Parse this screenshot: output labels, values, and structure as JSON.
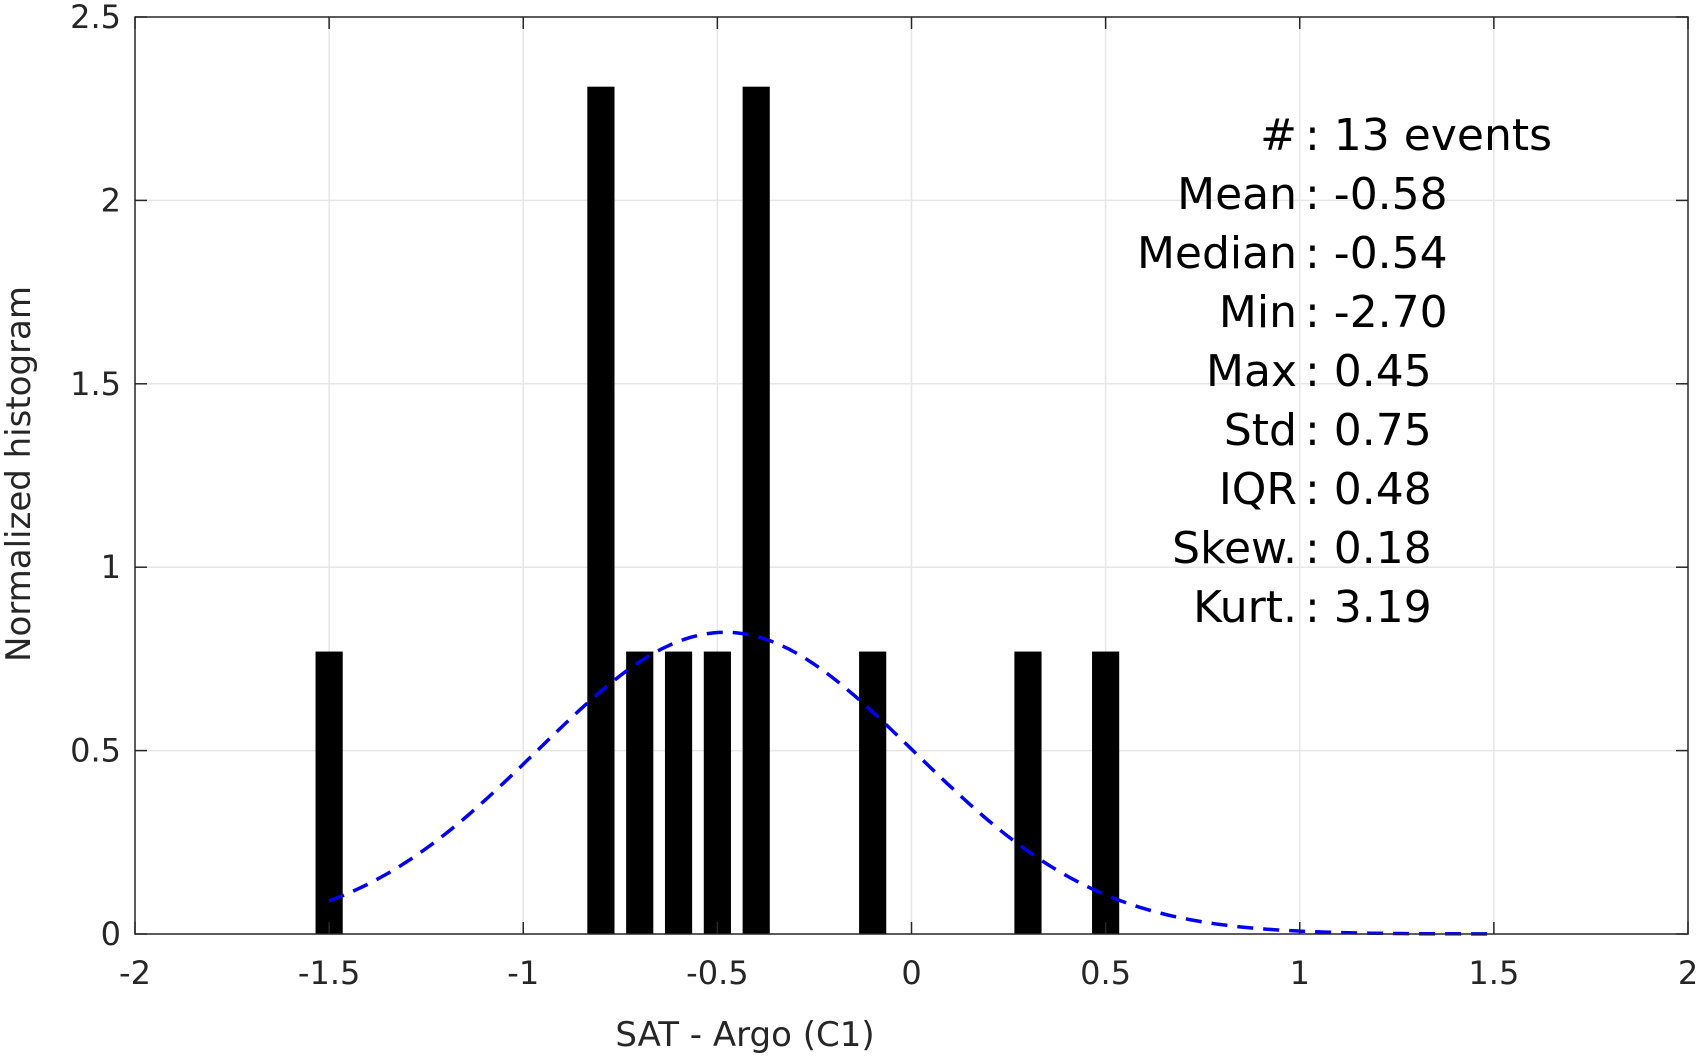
{
  "chart_data": {
    "type": "bar",
    "xlabel": "SAT - Argo (C1)",
    "ylabel": "Normalized histogram",
    "xlim": [
      -2,
      2
    ],
    "ylim": [
      0,
      2.5
    ],
    "xticks": [
      -2,
      -1.5,
      -1,
      -0.5,
      0,
      0.5,
      1,
      1.5,
      2
    ],
    "xtick_labels": [
      "-2",
      "-1.5",
      "-1",
      "-0.5",
      "0",
      "0.5",
      "1",
      "1.5",
      "2"
    ],
    "yticks": [
      0,
      0.5,
      1,
      1.5,
      2,
      2.5
    ],
    "ytick_labels": [
      "0",
      "0.5",
      "1",
      "1.5",
      "2",
      "2.5"
    ],
    "grid": true,
    "bar_color": "#000000",
    "bar_width": 0.07,
    "bars": [
      {
        "x": -1.5,
        "value": 0.77
      },
      {
        "x": -0.8,
        "value": 2.31
      },
      {
        "x": -0.7,
        "value": 0.77
      },
      {
        "x": -0.6,
        "value": 0.77
      },
      {
        "x": -0.5,
        "value": 0.77
      },
      {
        "x": -0.4,
        "value": 2.31
      },
      {
        "x": -0.1,
        "value": 0.77
      },
      {
        "x": 0.3,
        "value": 0.77
      },
      {
        "x": 0.5,
        "value": 0.77
      }
    ],
    "fit_curve": {
      "style": "dashed",
      "color": "#0000ee",
      "mean": -0.48,
      "std": 0.485,
      "x_range": [
        -1.5,
        1.5
      ]
    },
    "annotations": [
      {
        "label": "#",
        "value": ": 13 events"
      },
      {
        "label": "Mean",
        "value": ": -0.58"
      },
      {
        "label": "Median",
        "value": ": -0.54"
      },
      {
        "label": "Min",
        "value": ": -2.70"
      },
      {
        "label": "Max",
        "value": ": 0.45"
      },
      {
        "label": "Std",
        "value": ": 0.75"
      },
      {
        "label": "IQR",
        "value": ": 0.48"
      },
      {
        "label": "Skew.",
        "value": ": 0.18"
      },
      {
        "label": "Kurt.",
        "value": ": 3.19"
      }
    ]
  }
}
